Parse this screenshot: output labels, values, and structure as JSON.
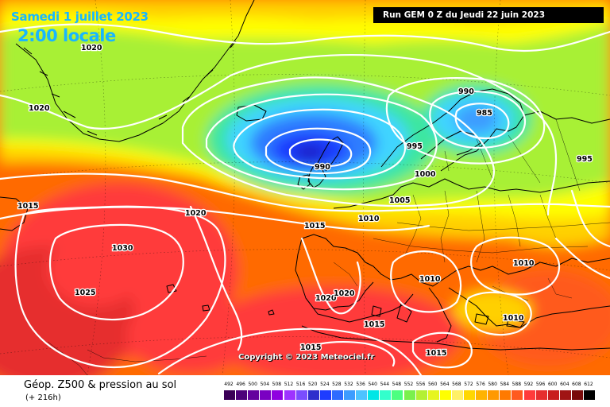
{
  "header": {
    "date": "Samedi 1 juillet 2023",
    "time": "2:00 locale",
    "run": "Run GEM 0 Z du Jeudi 22 juin 2023"
  },
  "footer": {
    "copyright": "Copyright © 2023 Meteociel.fr",
    "parameter": "Géop. Z500 & pression au sol",
    "lead": "(+ 216h)"
  },
  "legend": {
    "labels": [
      "492",
      "496",
      "500",
      "504",
      "508",
      "512",
      "516",
      "520",
      "524",
      "528",
      "532",
      "536",
      "540",
      "544",
      "548",
      "552",
      "556",
      "560",
      "564",
      "568",
      "572",
      "576",
      "580",
      "584",
      "588",
      "592",
      "596",
      "600",
      "604",
      "608",
      "612"
    ],
    "colors": [
      "#3b0057",
      "#4d007a",
      "#64009e",
      "#7a00c2",
      "#9000e0",
      "#9e33ff",
      "#7a4dff",
      "#2e2ecc",
      "#1e3cff",
      "#2e6bff",
      "#3d9cff",
      "#4dc3ff",
      "#00e6e6",
      "#33ffcc",
      "#4dff80",
      "#7af04d",
      "#b3f033",
      "#e6f51f",
      "#ffff00",
      "#fff066",
      "#ffd700",
      "#ffb300",
      "#ff9900",
      "#ff7a00",
      "#ff5a1f",
      "#ff3b3b",
      "#e62e2e",
      "#c81e1e",
      "#a01414",
      "#780a0a",
      "#000000"
    ]
  },
  "pressure_labels": [
    "1020",
    "1020",
    "1015",
    "1020",
    "1030",
    "1025",
    "1020",
    "1020",
    "1015",
    "1015",
    "1010",
    "1005",
    "990",
    "1000",
    "995",
    "990",
    "985",
    "995",
    "1010",
    "1010",
    "1010",
    "1015",
    "1015"
  ]
}
